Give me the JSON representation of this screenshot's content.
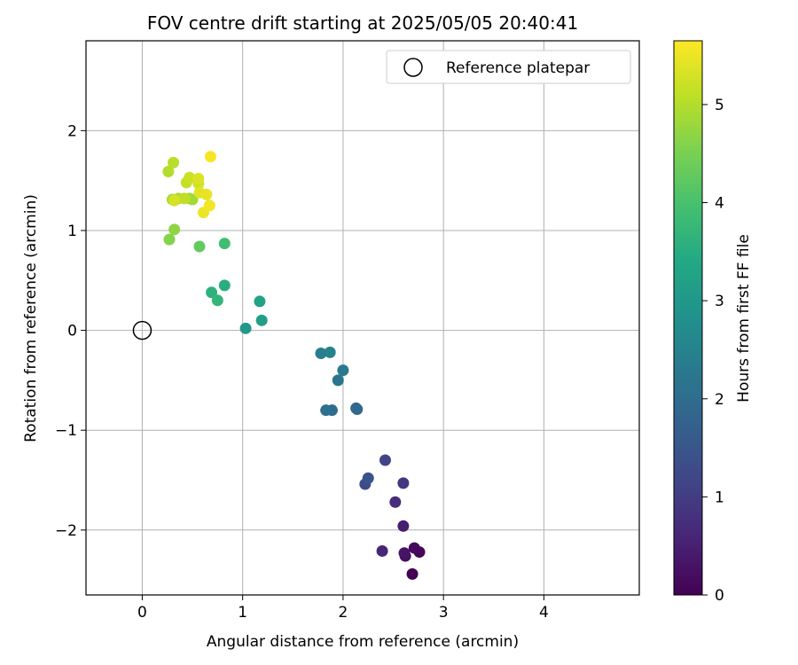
{
  "chart_data": {
    "type": "scatter",
    "title": "FOV centre drift starting at 2025/05/05 20:40:41",
    "xlabel": "Angular distance from reference (arcmin)",
    "ylabel": "Rotation from reference (arcmin)",
    "xlim": [
      -0.56,
      4.95
    ],
    "ylim": [
      -2.65,
      2.9
    ],
    "xticks": [
      0,
      1,
      2,
      3,
      4
    ],
    "yticks": [
      -2,
      -1,
      0,
      1,
      2
    ],
    "xtick_labels": [
      "0",
      "1",
      "2",
      "3",
      "4"
    ],
    "ytick_labels": [
      "−2",
      "−1",
      "0",
      "1",
      "2"
    ],
    "grid": true,
    "legend": {
      "placement": "top-right",
      "entries": [
        "Reference platepar"
      ]
    },
    "reference_point": {
      "name": "Reference platepar",
      "x": 0,
      "y": 0,
      "marker": "open-circle"
    },
    "colorbar": {
      "label": "Hours from first FF file",
      "colormap": "viridis",
      "range": [
        0,
        5.65
      ],
      "ticks": [
        0,
        1,
        2,
        3,
        4,
        5
      ],
      "tick_labels": [
        "0",
        "1",
        "2",
        "3",
        "4",
        "5"
      ]
    },
    "series": [
      {
        "points": [
          {
            "x": 2.69,
            "y": -2.44,
            "t": 0.0
          },
          {
            "x": 2.76,
            "y": -2.22,
            "t": 0.08
          },
          {
            "x": 2.71,
            "y": -2.18,
            "t": 0.15
          },
          {
            "x": 2.62,
            "y": -2.26,
            "t": 0.22
          },
          {
            "x": 2.61,
            "y": -2.23,
            "t": 0.3
          },
          {
            "x": 2.6,
            "y": -1.96,
            "t": 0.45
          },
          {
            "x": 2.39,
            "y": -2.21,
            "t": 0.6
          },
          {
            "x": 2.52,
            "y": -1.72,
            "t": 0.75
          },
          {
            "x": 2.6,
            "y": -1.53,
            "t": 0.9
          },
          {
            "x": 2.42,
            "y": -1.3,
            "t": 1.15
          },
          {
            "x": 2.22,
            "y": -1.54,
            "t": 1.3
          },
          {
            "x": 2.25,
            "y": -1.48,
            "t": 1.45
          },
          {
            "x": 2.13,
            "y": -0.78,
            "t": 1.8
          },
          {
            "x": 2.14,
            "y": -0.79,
            "t": 1.9
          },
          {
            "x": 1.89,
            "y": -0.8,
            "t": 2.0
          },
          {
            "x": 1.83,
            "y": -0.8,
            "t": 2.1
          },
          {
            "x": 1.95,
            "y": -0.5,
            "t": 2.2
          },
          {
            "x": 2.0,
            "y": -0.4,
            "t": 2.3
          },
          {
            "x": 1.78,
            "y": -0.23,
            "t": 2.4
          },
          {
            "x": 1.87,
            "y": -0.22,
            "t": 2.5
          },
          {
            "x": 1.03,
            "y": 0.02,
            "t": 3.0
          },
          {
            "x": 1.19,
            "y": 0.1,
            "t": 3.15
          },
          {
            "x": 1.17,
            "y": 0.29,
            "t": 3.25
          },
          {
            "x": 0.82,
            "y": 0.45,
            "t": 3.5
          },
          {
            "x": 0.69,
            "y": 0.38,
            "t": 3.6
          },
          {
            "x": 0.75,
            "y": 0.3,
            "t": 3.7
          },
          {
            "x": 0.82,
            "y": 0.87,
            "t": 3.9
          },
          {
            "x": 0.57,
            "y": 0.84,
            "t": 4.3
          },
          {
            "x": 0.27,
            "y": 0.91,
            "t": 4.6
          },
          {
            "x": 0.32,
            "y": 1.01,
            "t": 4.7
          },
          {
            "x": 0.47,
            "y": 1.32,
            "t": 4.8
          },
          {
            "x": 0.5,
            "y": 1.31,
            "t": 4.85
          },
          {
            "x": 0.3,
            "y": 1.31,
            "t": 4.9
          },
          {
            "x": 0.36,
            "y": 1.32,
            "t": 4.95
          },
          {
            "x": 0.26,
            "y": 1.59,
            "t": 5.0
          },
          {
            "x": 0.31,
            "y": 1.68,
            "t": 5.05
          },
          {
            "x": 0.42,
            "y": 1.32,
            "t": 5.1
          },
          {
            "x": 0.44,
            "y": 1.48,
            "t": 5.15
          },
          {
            "x": 0.47,
            "y": 1.53,
            "t": 5.2
          },
          {
            "x": 0.56,
            "y": 1.47,
            "t": 5.25
          },
          {
            "x": 0.32,
            "y": 1.3,
            "t": 5.3
          },
          {
            "x": 0.56,
            "y": 1.52,
            "t": 5.35
          },
          {
            "x": 0.57,
            "y": 1.38,
            "t": 5.4
          },
          {
            "x": 0.64,
            "y": 1.36,
            "t": 5.45
          },
          {
            "x": 0.61,
            "y": 1.18,
            "t": 5.5
          },
          {
            "x": 0.67,
            "y": 1.25,
            "t": 5.55
          },
          {
            "x": 0.68,
            "y": 1.74,
            "t": 5.6
          }
        ]
      }
    ]
  }
}
